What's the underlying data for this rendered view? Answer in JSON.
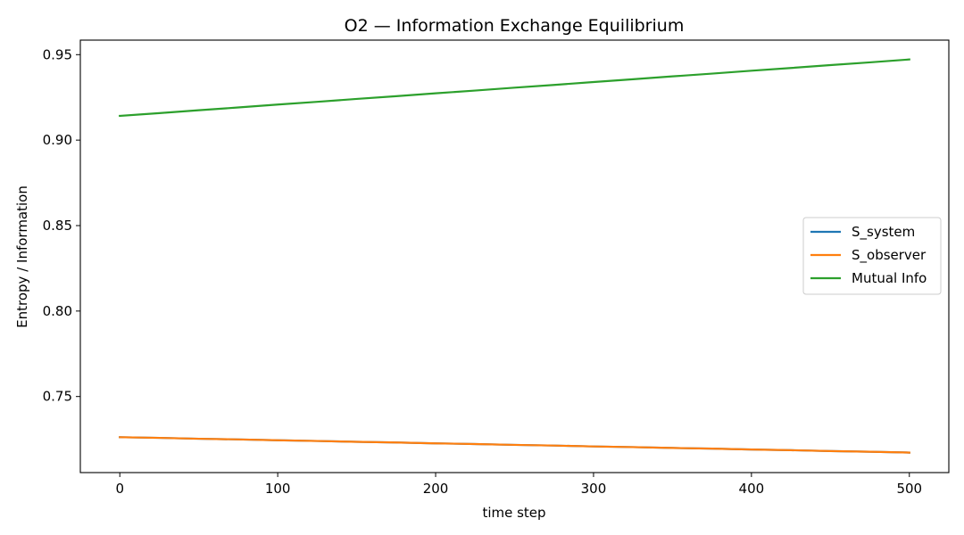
{
  "chart_data": {
    "type": "line",
    "title": "O2 — Information Exchange Equilibrium",
    "xlabel": "time step",
    "ylabel": "Entropy / Information",
    "xlim": [
      -25,
      525
    ],
    "ylim": [
      0.7055,
      0.9585
    ],
    "xticks": [
      0,
      100,
      200,
      300,
      400,
      500
    ],
    "yticks": [
      0.75,
      0.8,
      0.85,
      0.9,
      0.95
    ],
    "ytick_labels": [
      "0.75",
      "0.80",
      "0.85",
      "0.90",
      "0.95"
    ],
    "grid": false,
    "legend_position": "center-right",
    "series": [
      {
        "name": "S_system",
        "color": "#1f77b4",
        "x": [
          0,
          25,
          50,
          75,
          100,
          125,
          150,
          175,
          200,
          225,
          250,
          275,
          300,
          325,
          350,
          375,
          400,
          425,
          450,
          475,
          500
        ],
        "y": [
          0.7262,
          0.7258,
          0.7253,
          0.7249,
          0.7244,
          0.724,
          0.7235,
          0.7231,
          0.7226,
          0.7222,
          0.7217,
          0.7213,
          0.7208,
          0.7204,
          0.7199,
          0.7195,
          0.719,
          0.7186,
          0.7181,
          0.7177,
          0.7172
        ]
      },
      {
        "name": "S_observer",
        "color": "#ff7f0e",
        "x": [
          0,
          25,
          50,
          75,
          100,
          125,
          150,
          175,
          200,
          225,
          250,
          275,
          300,
          325,
          350,
          375,
          400,
          425,
          450,
          475,
          500
        ],
        "y": [
          0.7262,
          0.7258,
          0.7253,
          0.7249,
          0.7244,
          0.724,
          0.7235,
          0.7231,
          0.7226,
          0.7222,
          0.7217,
          0.7213,
          0.7208,
          0.7204,
          0.7199,
          0.7195,
          0.719,
          0.7186,
          0.7181,
          0.7177,
          0.7172
        ]
      },
      {
        "name": "Mutual Info",
        "color": "#2ca02c",
        "x": [
          0,
          25,
          50,
          75,
          100,
          125,
          150,
          175,
          200,
          225,
          250,
          275,
          300,
          325,
          350,
          375,
          400,
          425,
          450,
          475,
          500
        ],
        "y": [
          0.9142,
          0.9158,
          0.9175,
          0.9191,
          0.9208,
          0.9224,
          0.9241,
          0.9257,
          0.9274,
          0.929,
          0.9307,
          0.9323,
          0.934,
          0.9356,
          0.9373,
          0.9389,
          0.9406,
          0.9422,
          0.9439,
          0.9455,
          0.9472
        ]
      }
    ]
  }
}
